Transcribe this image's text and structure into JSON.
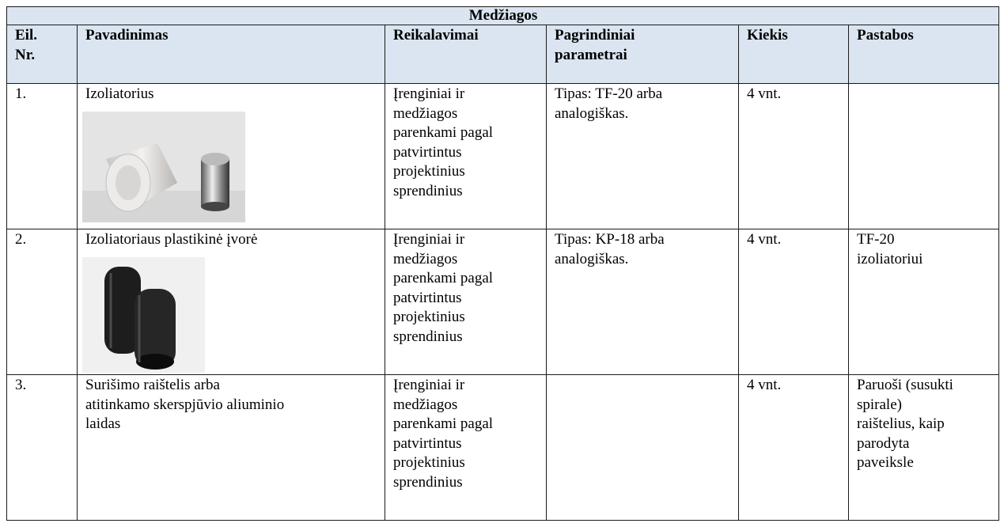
{
  "table": {
    "title": "Medžiagos",
    "header": [
      [
        "Eil.",
        "Nr."
      ],
      [
        "Pavadinimas"
      ],
      [
        "Reikalavimai"
      ],
      [
        "Pagrindiniai",
        "parametrai"
      ],
      [
        "Kiekis"
      ],
      [
        "Pastabos"
      ]
    ],
    "rows": [
      [
        [
          "1."
        ],
        [
          "Izoliatorius"
        ],
        [
          "Įrenginiai ir",
          "medžiagos",
          "parenkami pagal",
          "patvirtintus",
          "projektinius",
          "sprendinius"
        ],
        [
          "Tipas: TF-20 arba",
          "analogiškas."
        ],
        [
          "4 vnt."
        ],
        []
      ],
      [
        [
          "2."
        ],
        [
          "Izoliatoriaus plastikinė įvorė"
        ],
        [
          "Įrenginiai ir",
          "medžiagos",
          "parenkami pagal",
          "patvirtintus",
          "projektinius",
          "sprendinius"
        ],
        [
          "Tipas: KP-18 arba",
          "analogiškas."
        ],
        [
          "4 vnt."
        ],
        [
          "TF-20",
          "izoliatoriui"
        ]
      ],
      [
        [
          "3."
        ],
        [
          "Surišimo raištelis arba",
          "atitinkamo skerspjūvio aliuminio",
          "laidas"
        ],
        [
          "Įrenginiai ir",
          "medžiagos",
          "parenkami pagal",
          "patvirtintus",
          "projektinius",
          "sprendinius"
        ],
        [],
        [
          "4 vnt."
        ],
        [
          "Paruoši (susukti",
          "spirale)",
          "raištelius, kaip",
          "parodyta",
          "paveiksle"
        ]
      ]
    ]
  }
}
